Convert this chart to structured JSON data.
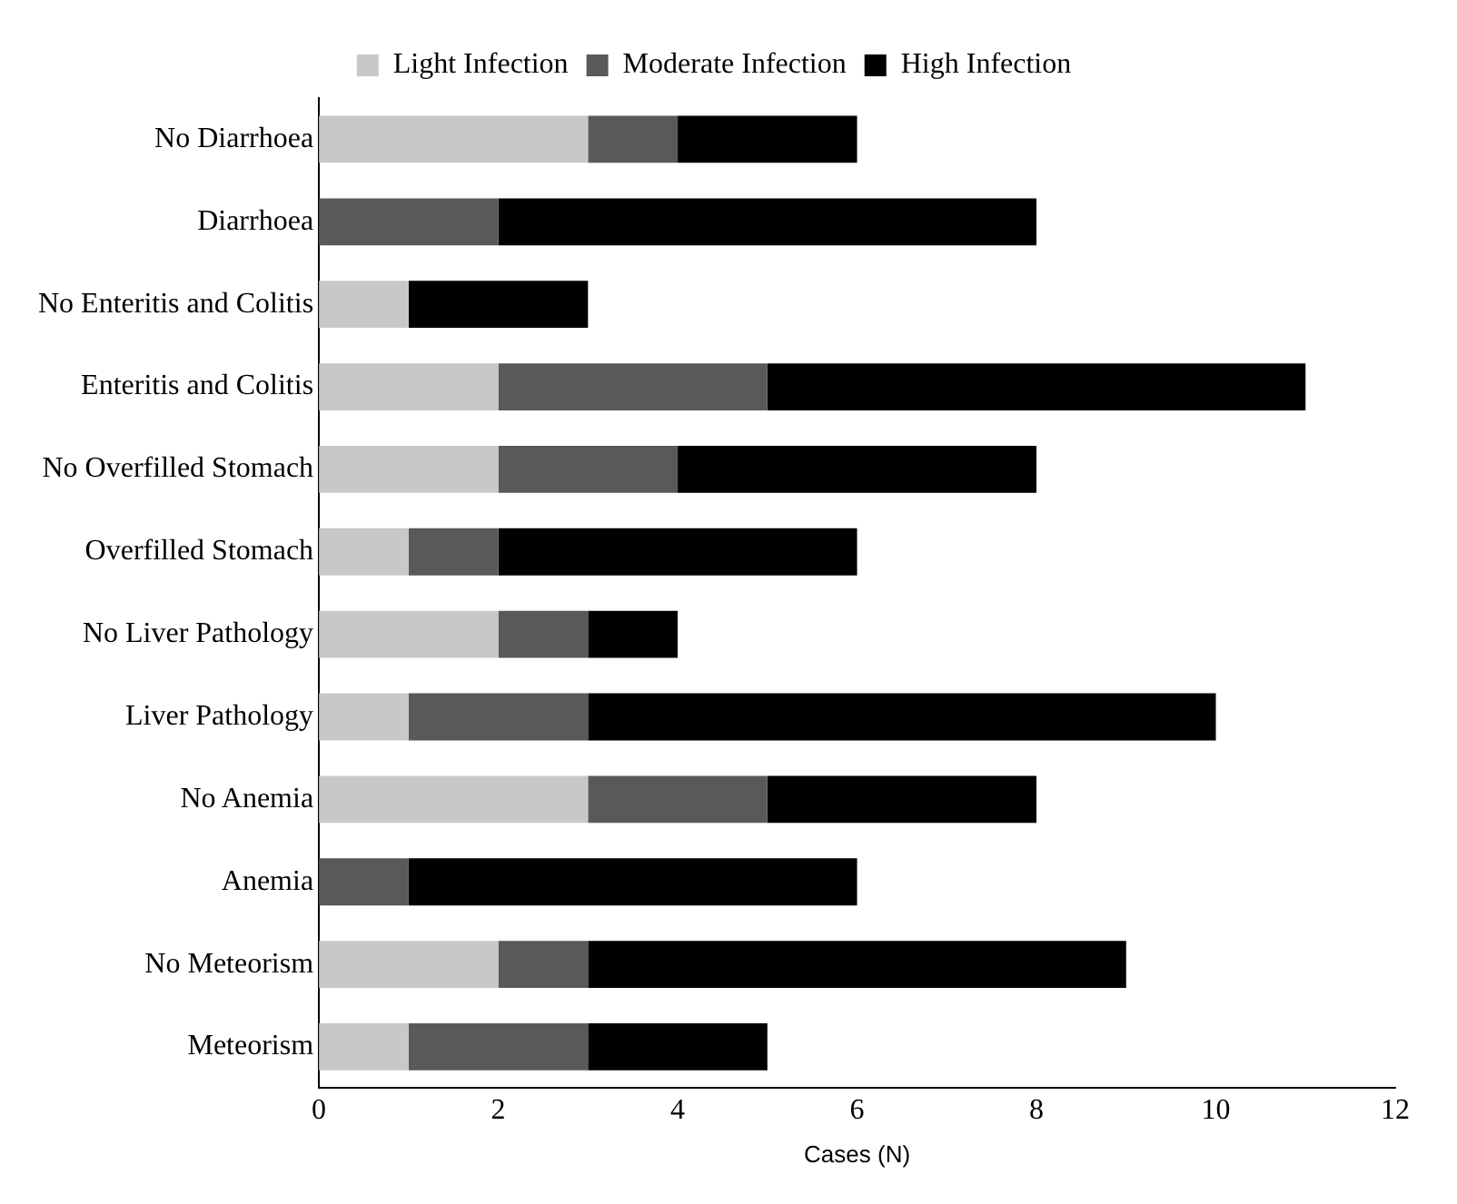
{
  "chart_data": {
    "type": "bar",
    "orientation": "horizontal",
    "stacked": true,
    "xlabel": "Cases (N)",
    "categories": [
      "No Diarrhoea",
      "Diarrhoea",
      "No Enteritis and Colitis",
      "Enteritis and Colitis",
      "No Overfilled Stomach",
      "Overfilled Stomach",
      "No Liver Pathology",
      "Liver Pathology",
      "No Anemia",
      "Anemia",
      "No Meteorism",
      "Meteorism"
    ],
    "series": [
      {
        "name": "Light Infection",
        "color": "#c8c8c8",
        "values": [
          3,
          0,
          1,
          2,
          2,
          1,
          2,
          1,
          3,
          0,
          2,
          1
        ]
      },
      {
        "name": "Moderate Infection",
        "color": "#595959",
        "values": [
          1,
          2,
          0,
          3,
          2,
          1,
          1,
          2,
          2,
          1,
          1,
          2
        ]
      },
      {
        "name": "High Infection",
        "color": "#000000",
        "values": [
          2,
          6,
          2,
          6,
          4,
          4,
          1,
          7,
          3,
          5,
          6,
          2
        ]
      }
    ],
    "xlim": [
      0,
      12
    ],
    "xticks": [
      0,
      2,
      4,
      6,
      8,
      10,
      12
    ],
    "grid": false,
    "legend": "top"
  }
}
